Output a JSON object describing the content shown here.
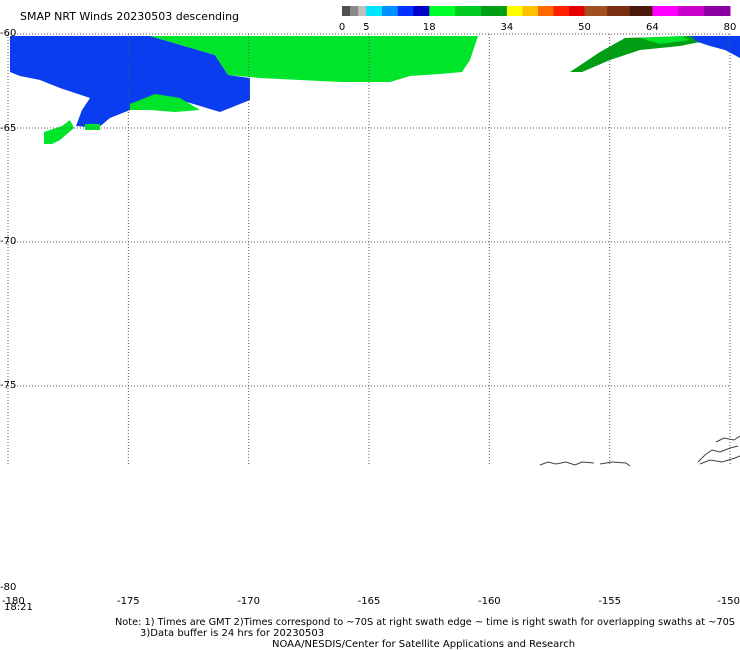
{
  "header": {
    "title": "SMAP NRT Winds  20230503 descending"
  },
  "legend": {
    "ticks": [
      "0",
      "5",
      "18",
      "34",
      "50",
      "64",
      "80"
    ],
    "bands": [
      {
        "from": 0,
        "to": 5,
        "colors": [
          "#505050",
          "#8a8a8a",
          "#c0c0c0"
        ]
      },
      {
        "from": 5,
        "to": 18,
        "colors": [
          "#00e4ff",
          "#0090ff",
          "#0032ff",
          "#0000c8"
        ]
      },
      {
        "from": 18,
        "to": 34,
        "colors": [
          "#00ff2a",
          "#00cc22",
          "#009e12"
        ]
      },
      {
        "from": 34,
        "to": 50,
        "colors": [
          "#ffff00",
          "#ffc000",
          "#ff6a00",
          "#ff2000",
          "#e80000"
        ]
      },
      {
        "from": 50,
        "to": 64,
        "colors": [
          "#a05020",
          "#7a3010",
          "#4a1808"
        ]
      },
      {
        "from": 64,
        "to": 80,
        "colors": [
          "#ff00ff",
          "#cc00cc",
          "#8a00a0"
        ]
      }
    ]
  },
  "map": {
    "lat_labels": [
      "-60",
      "-65",
      "-70",
      "-75",
      "-80"
    ],
    "lon_labels": [
      "-180",
      "-175",
      "-170",
      "-165",
      "-160",
      "-155",
      "-150"
    ],
    "time_label": "18:21",
    "colors": {
      "wind_light": "#0a3cf0",
      "wind_moderate": "#00e52a",
      "wind_moderate_dark": "#009e12",
      "coast": "#404040",
      "grid": "#555555"
    }
  },
  "footer": {
    "note_line1": "Note: 1) Times are GMT 2)Times correspond to ~70S at right swath edge ~ time is right swath for overlapping swaths at ~70S",
    "note_line2": "3)Data buffer is 24 hrs for 20230503",
    "credit": "NOAA/NESDIS/Center for Satellite Applications and Research"
  }
}
